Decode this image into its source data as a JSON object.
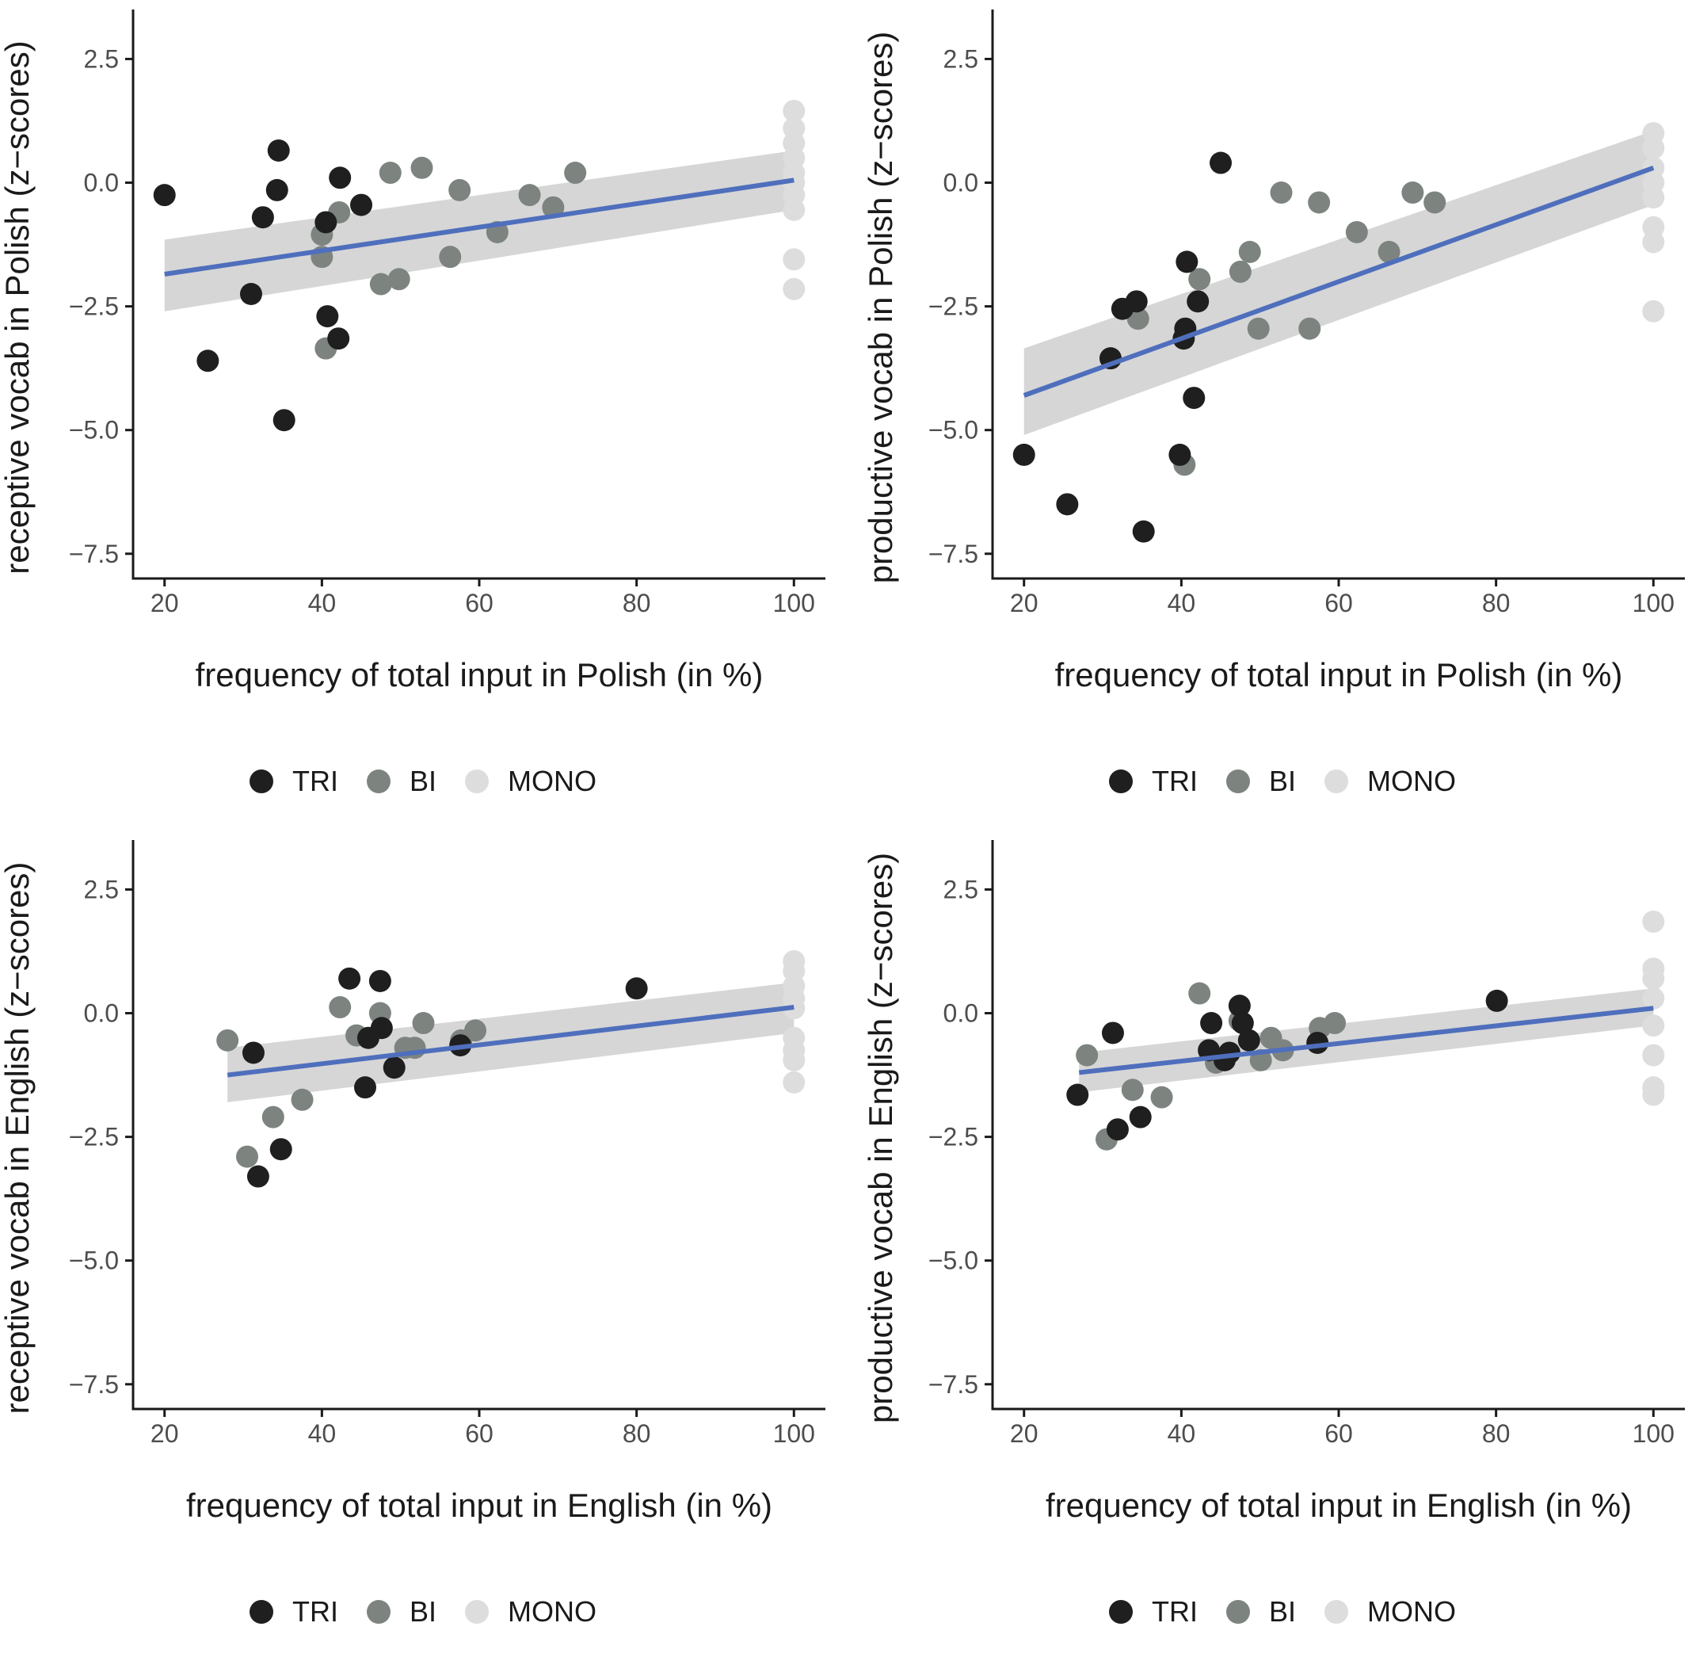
{
  "colors": {
    "TRI": "#1f1f1f",
    "BI": "#7d8480",
    "MONO": "#dddddd",
    "fit": "#4f6fbd",
    "band": "#cccccc",
    "axis": "#1a1a1a"
  },
  "legend": [
    {
      "key": "TRI",
      "label": "TRI"
    },
    {
      "key": "BI",
      "label": "BI"
    },
    {
      "key": "MONO",
      "label": "MONO"
    }
  ],
  "chart_data": [
    {
      "type": "scatter",
      "xlabel": "frequency of total input in Polish (in %)",
      "ylabel": "receptive vocab in Polish (z−scores)",
      "xlim": [
        16,
        104
      ],
      "ylim": [
        -8.0,
        3.5
      ],
      "xticks": [
        20,
        40,
        60,
        80,
        100
      ],
      "yticks": [
        2.5,
        0.0,
        -2.5,
        -5.0,
        -7.5
      ],
      "xtick_labels": [
        "20",
        "40",
        "60",
        "80",
        "100"
      ],
      "ytick_labels": [
        "2.5",
        "0.0",
        "−2.5",
        "−5.0",
        "−7.5"
      ],
      "fit": {
        "x": [
          20,
          100
        ],
        "y": [
          -1.85,
          0.05
        ],
        "band_lower": [
          -2.6,
          -0.55
        ],
        "band_upper": [
          -1.15,
          0.65
        ]
      },
      "points": {
        "TRI": [
          [
            20,
            -0.25
          ],
          [
            25.5,
            -3.6
          ],
          [
            31,
            -2.25
          ],
          [
            32.5,
            -0.7
          ],
          [
            34.3,
            -0.15
          ],
          [
            34.5,
            0.65
          ],
          [
            35.2,
            -4.8
          ],
          [
            40.5,
            -0.8
          ],
          [
            40.7,
            -2.7
          ],
          [
            42.1,
            -3.15
          ],
          [
            42.3,
            0.1
          ],
          [
            45,
            -0.45
          ]
        ],
        "BI": [
          [
            40,
            -1.05
          ],
          [
            40,
            -1.5
          ],
          [
            40.5,
            -3.35
          ],
          [
            42.2,
            -0.6
          ],
          [
            47.5,
            -2.05
          ],
          [
            48.7,
            0.2
          ],
          [
            49.8,
            -1.95
          ],
          [
            52.7,
            0.3
          ],
          [
            56.3,
            -1.5
          ],
          [
            57.5,
            -0.15
          ],
          [
            62.3,
            -1.0
          ],
          [
            66.4,
            -0.25
          ],
          [
            69.4,
            -0.5
          ],
          [
            72.2,
            0.2
          ]
        ],
        "MONO": [
          [
            100,
            1.45
          ],
          [
            100,
            1.1
          ],
          [
            100,
            0.8
          ],
          [
            100,
            0.5
          ],
          [
            100,
            0.2
          ],
          [
            100,
            0.0
          ],
          [
            100,
            -0.25
          ],
          [
            100,
            -0.55
          ],
          [
            100,
            -1.55
          ],
          [
            100,
            -2.15
          ]
        ]
      }
    },
    {
      "type": "scatter",
      "xlabel": "frequency of total input in Polish (in %)",
      "ylabel": "productive vocab in Polish (z−scores)",
      "xlim": [
        16,
        104
      ],
      "ylim": [
        -8.0,
        3.5
      ],
      "xticks": [
        20,
        40,
        60,
        80,
        100
      ],
      "yticks": [
        2.5,
        0.0,
        -2.5,
        -5.0,
        -7.5
      ],
      "xtick_labels": [
        "20",
        "40",
        "60",
        "80",
        "100"
      ],
      "ytick_labels": [
        "2.5",
        "0.0",
        "−2.5",
        "−5.0",
        "−7.5"
      ],
      "fit": {
        "x": [
          20,
          100
        ],
        "y": [
          -4.3,
          0.3
        ],
        "band_lower": [
          -5.1,
          -0.45
        ],
        "band_upper": [
          -3.35,
          1.05
        ]
      },
      "points": {
        "TRI": [
          [
            20,
            -5.5
          ],
          [
            25.5,
            -6.5
          ],
          [
            31,
            -3.55
          ],
          [
            32.5,
            -2.55
          ],
          [
            34.3,
            -2.4
          ],
          [
            35.2,
            -7.05
          ],
          [
            39.8,
            -5.5
          ],
          [
            40.3,
            -3.15
          ],
          [
            40.5,
            -2.95
          ],
          [
            40.7,
            -1.6
          ],
          [
            41.6,
            -4.35
          ],
          [
            42.1,
            -2.4
          ],
          [
            45,
            0.4
          ]
        ],
        "BI": [
          [
            34.5,
            -2.75
          ],
          [
            40.4,
            -5.7
          ],
          [
            42.3,
            -1.95
          ],
          [
            47.5,
            -1.8
          ],
          [
            48.7,
            -1.4
          ],
          [
            49.8,
            -2.95
          ],
          [
            52.7,
            -0.2
          ],
          [
            56.3,
            -2.95
          ],
          [
            57.5,
            -0.4
          ],
          [
            62.3,
            -1.0
          ],
          [
            66.4,
            -1.4
          ],
          [
            69.4,
            -0.2
          ],
          [
            72.2,
            -0.4
          ]
        ],
        "MONO": [
          [
            100,
            1.0
          ],
          [
            100,
            0.7
          ],
          [
            100,
            0.3
          ],
          [
            100,
            0.0
          ],
          [
            100,
            -0.3
          ],
          [
            100,
            -0.9
          ],
          [
            100,
            -1.2
          ],
          [
            100,
            -2.6
          ]
        ]
      }
    },
    {
      "type": "scatter",
      "xlabel": "frequency of total input in English (in %)",
      "ylabel": "receptive vocab in English (z−scores)",
      "xlim": [
        16,
        104
      ],
      "ylim": [
        -8.0,
        3.5
      ],
      "xticks": [
        20,
        40,
        60,
        80,
        100
      ],
      "yticks": [
        2.5,
        0.0,
        -2.5,
        -5.0,
        -7.5
      ],
      "xtick_labels": [
        "20",
        "40",
        "60",
        "80",
        "100"
      ],
      "ytick_labels": [
        "2.5",
        "0.0",
        "−2.5",
        "−5.0",
        "−7.5"
      ],
      "fit": {
        "x": [
          28,
          100
        ],
        "y": [
          -1.25,
          0.12
        ],
        "band_lower": [
          -1.8,
          -0.4
        ],
        "band_upper": [
          -0.7,
          0.62
        ]
      },
      "points": {
        "TRI": [
          [
            31.3,
            -0.8
          ],
          [
            31.9,
            -3.3
          ],
          [
            34.8,
            -2.75
          ],
          [
            43.5,
            0.7
          ],
          [
            45.5,
            -1.5
          ],
          [
            45.9,
            -0.5
          ],
          [
            47.4,
            0.65
          ],
          [
            47.6,
            -0.3
          ],
          [
            49.2,
            -1.1
          ],
          [
            57.6,
            -0.65
          ],
          [
            80,
            0.5
          ]
        ],
        "BI": [
          [
            28,
            -0.55
          ],
          [
            30.5,
            -2.9
          ],
          [
            33.8,
            -2.1
          ],
          [
            37.5,
            -1.75
          ],
          [
            42.3,
            0.12
          ],
          [
            44.4,
            -0.45
          ],
          [
            47.4,
            0.0
          ],
          [
            50.6,
            -0.7
          ],
          [
            51.8,
            -0.7
          ],
          [
            52.9,
            -0.2
          ],
          [
            57.7,
            -0.55
          ],
          [
            59.5,
            -0.35
          ]
        ],
        "MONO": [
          [
            100,
            1.05
          ],
          [
            100,
            0.85
          ],
          [
            100,
            0.55
          ],
          [
            100,
            0.3
          ],
          [
            100,
            0.1
          ],
          [
            100,
            -0.5
          ],
          [
            100,
            -0.75
          ],
          [
            100,
            -0.95
          ],
          [
            100,
            -1.4
          ]
        ]
      }
    },
    {
      "type": "scatter",
      "xlabel": "frequency of total input in English (in %)",
      "ylabel": "productive vocab in English (z−scores)",
      "xlim": [
        16,
        104
      ],
      "ylim": [
        -8.0,
        3.5
      ],
      "xticks": [
        20,
        40,
        60,
        80,
        100
      ],
      "yticks": [
        2.5,
        0.0,
        -2.5,
        -5.0,
        -7.5
      ],
      "xtick_labels": [
        "20",
        "40",
        "60",
        "80",
        "100"
      ],
      "ytick_labels": [
        "2.5",
        "0.0",
        "−2.5",
        "−5.0",
        "−7.5"
      ],
      "fit": {
        "x": [
          27,
          100
        ],
        "y": [
          -1.2,
          0.1
        ],
        "band_lower": [
          -1.6,
          -0.25
        ],
        "band_upper": [
          -0.8,
          0.5
        ]
      },
      "points": {
        "TRI": [
          [
            26.8,
            -1.65
          ],
          [
            31.3,
            -0.4
          ],
          [
            31.9,
            -2.35
          ],
          [
            34.8,
            -2.1
          ],
          [
            43.5,
            -0.75
          ],
          [
            43.8,
            -0.2
          ],
          [
            45.5,
            -0.95
          ],
          [
            46.1,
            -0.8
          ],
          [
            47.4,
            0.15
          ],
          [
            47.8,
            -0.2
          ],
          [
            48.6,
            -0.55
          ],
          [
            57.3,
            -0.6
          ],
          [
            80.1,
            0.25
          ]
        ],
        "BI": [
          [
            28,
            -0.85
          ],
          [
            30.5,
            -2.55
          ],
          [
            33.8,
            -1.55
          ],
          [
            37.5,
            -1.7
          ],
          [
            42.3,
            0.4
          ],
          [
            44.4,
            -1.0
          ],
          [
            47.4,
            -0.15
          ],
          [
            50.1,
            -0.95
          ],
          [
            51.4,
            -0.5
          ],
          [
            52.9,
            -0.75
          ],
          [
            57.6,
            -0.3
          ],
          [
            59.5,
            -0.2
          ]
        ],
        "MONO": [
          [
            100,
            1.85
          ],
          [
            100,
            0.9
          ],
          [
            100,
            0.7
          ],
          [
            100,
            0.3
          ],
          [
            100,
            -0.25
          ],
          [
            100,
            -0.85
          ],
          [
            100,
            -1.5
          ],
          [
            100,
            -1.65
          ]
        ]
      }
    }
  ]
}
